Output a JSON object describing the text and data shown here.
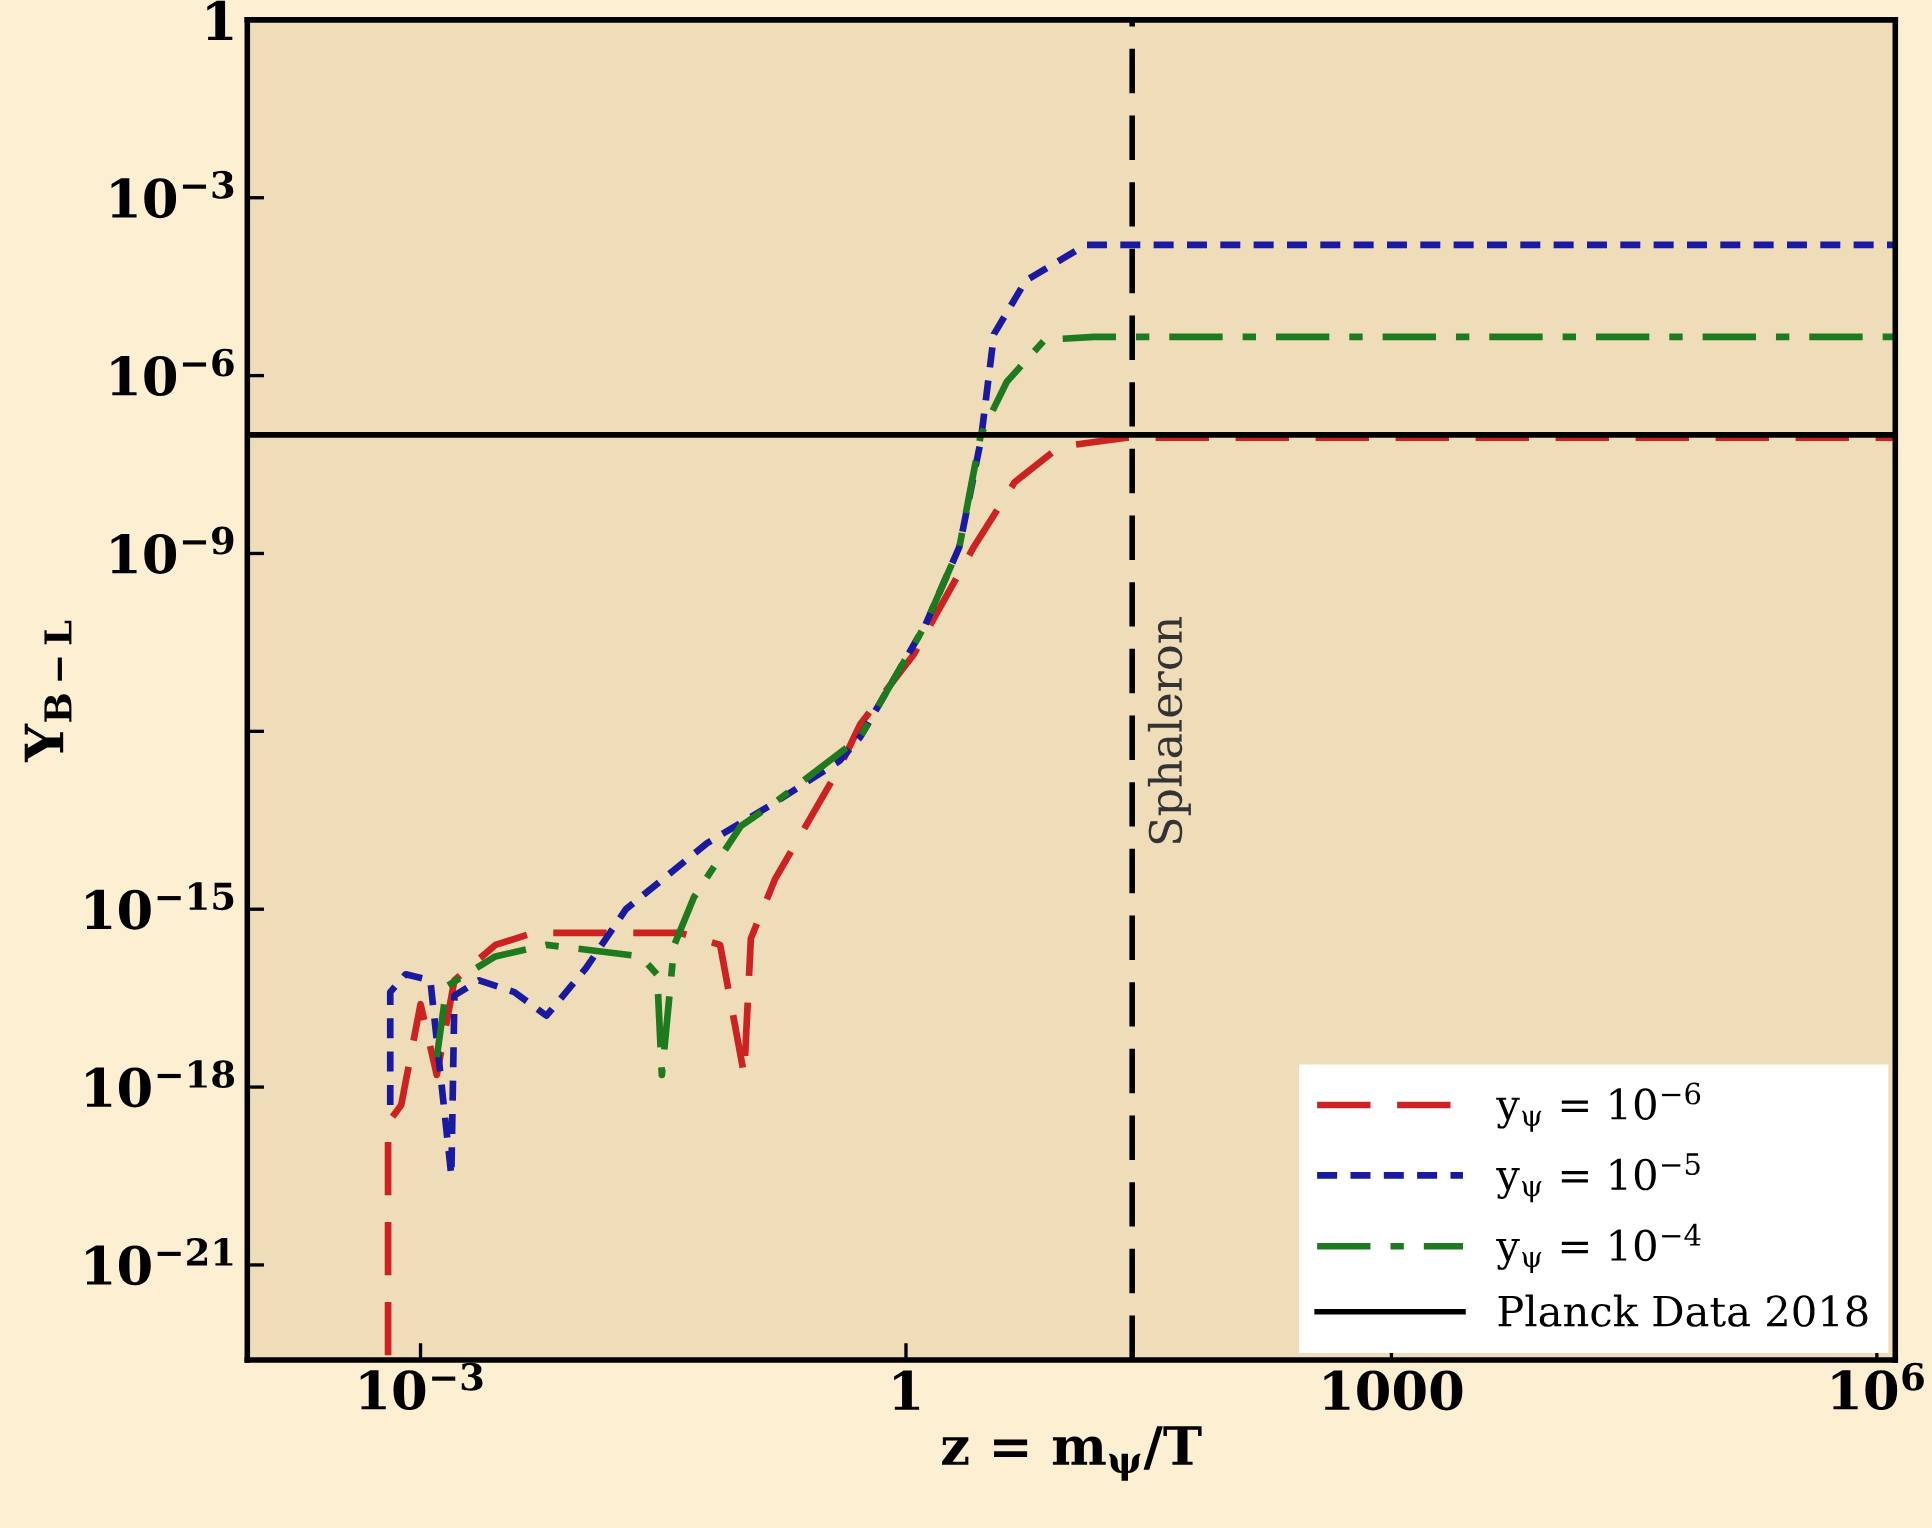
{
  "chart_data": {
    "type": "line",
    "xlabel": "z = m$_{ψ}$/T",
    "ylabel": "Y$_{B−L}$",
    "log": "xy",
    "grid": false,
    "legend": "bottom right",
    "xlim": [
      8.5e-05,
      1300000.0
    ],
    "ylim": [
      2.5e-23,
      1
    ],
    "xticks": [
      {
        "value": 0.001,
        "label": "10$^{−3}$"
      },
      1,
      1000,
      {
        "value": 1000000,
        "label": "10$^{6}$"
      }
    ],
    "yticks": [
      {
        "value": 1e-21,
        "label": "10$^{−21}$"
      },
      {
        "value": 1e-18,
        "label": "10$^{−18}$"
      },
      {
        "value": 1e-15,
        "label": "10$^{−15}$"
      },
      {
        "value": 1e-12,
        "label": null
      },
      {
        "value": 1e-09,
        "label": "10$^{−9}$"
      },
      {
        "value": 1e-06,
        "label": "10$^{−6}$"
      },
      {
        "value": 0.001,
        "label": "10$^{−3}$"
      },
      1
    ],
    "series": [
      {
        "name": "y$_{ψ}$ = 10$^{−6}$",
        "color": "#cc2222",
        "line_style": "dashed",
        "x": [
          0.00063,
          0.00063,
          0.00076,
          0.001,
          0.00126,
          0.00162,
          0.0029,
          0.005,
          0.04,
          0.071,
          0.1,
          0.11,
          0.155,
          0.39,
          0.52,
          1.12,
          2.63,
          4.7,
          8.9,
          23,
          1300000.0
        ],
        "values": [
          3e-23,
          2.5e-19,
          5e-19,
          2.5e-17,
          1.6e-18,
          6.3e-17,
          2.5e-16,
          4e-16,
          4e-16,
          2.5e-16,
          1.6e-18,
          3.2e-16,
          3.2e-15,
          2.5e-13,
          1.3e-12,
          2e-11,
          1.3e-09,
          1.6e-08,
          6.3e-08,
          9e-08,
          9e-08
        ]
      },
      {
        "name": "y$_{ψ}$ = 10$^{−5}$",
        "color": "#1a1aa0",
        "line_style": "dotted",
        "x": [
          0.00065,
          0.00065,
          0.00081,
          0.00115,
          0.00155,
          0.00162,
          0.0023,
          0.0038,
          0.006,
          0.0105,
          0.0186,
          0.059,
          0.155,
          0.39,
          0.52,
          1.32,
          2.14,
          2.9,
          3.5,
          5.5,
          12.9,
          1300000.0
        ],
        "values": [
          5e-19,
          4e-17,
          8e-17,
          6.3e-17,
          3.2e-20,
          3.5e-17,
          6.3e-17,
          4e-17,
          1.6e-17,
          1e-16,
          1e-15,
          1.3e-14,
          6.3e-14,
          3.2e-13,
          7.9e-13,
          6.3e-11,
          1.3e-09,
          8e-08,
          5e-06,
          4e-05,
          0.00016,
          0.00016
        ]
      },
      {
        "name": "y$_{ψ}$ = 10$^{−4}$",
        "color": "#1e7a1e",
        "line_style": "dashdot",
        "x": [
          0.00126,
          0.00145,
          0.0029,
          0.006,
          0.023,
          0.029,
          0.031,
          0.037,
          0.049,
          0.095,
          0.155,
          0.52,
          1.32,
          2.14,
          2.9,
          4.2,
          7.2,
          14.5,
          1300000.0
        ],
        "values": [
          3.2e-18,
          5e-17,
          1.6e-16,
          2.5e-16,
          1.6e-16,
          7.9e-17,
          1.6e-18,
          2.5e-16,
          1.6e-15,
          2.5e-14,
          6.3e-14,
          7.9e-13,
          6.3e-11,
          1.3e-09,
          1e-07,
          7.9e-07,
          4e-06,
          4.5e-06,
          4.5e-06
        ]
      }
    ],
    "ref_lines": [
      {
        "axis": "y",
        "value": 1e-07,
        "label": "Planck Data 2018",
        "color": "#000000",
        "line_style": "solid"
      },
      {
        "axis": "x",
        "value": 25,
        "label": "Sphaleron",
        "color": "#000000",
        "line_style": "dashed"
      }
    ]
  }
}
